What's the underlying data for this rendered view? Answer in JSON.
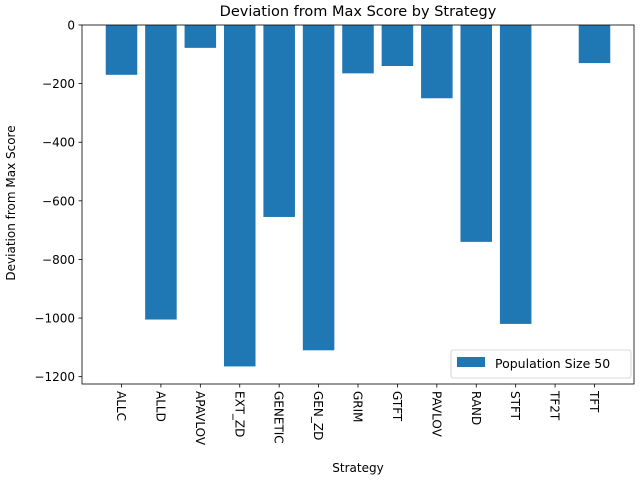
{
  "chart_data": {
    "type": "bar",
    "title": "Deviation from Max Score by Strategy",
    "xlabel": "Strategy",
    "ylabel": "Deviation from Max Score",
    "categories": [
      "ALLC",
      "ALLD",
      "APAVLOV",
      "EXT_ZD",
      "GENETIC",
      "GEN_ZD",
      "GRIM",
      "GTFT",
      "PAVLOV",
      "RAND",
      "STFT",
      "TF2T",
      "TFT"
    ],
    "series": [
      {
        "name": "Population Size 50",
        "color": "#1f77b4",
        "values": [
          -170,
          -1005,
          -78,
          -1165,
          -655,
          -1110,
          -165,
          -140,
          -250,
          -740,
          -1020,
          0,
          -130
        ]
      }
    ],
    "yticks": [
      0,
      -200,
      -400,
      -600,
      -800,
      -1000,
      -1200
    ],
    "ytick_labels": [
      "0",
      "−200",
      "−400",
      "−600",
      "−800",
      "−1000",
      "−1200"
    ],
    "ylim": [
      -1225,
      0
    ],
    "legend_position": "lower-right",
    "grid": false
  }
}
